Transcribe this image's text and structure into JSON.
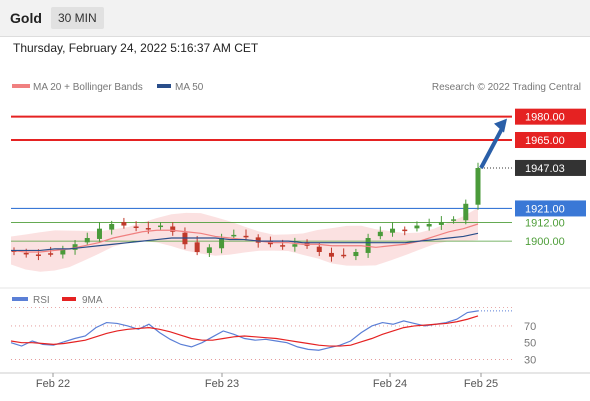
{
  "header": {
    "symbol": "Gold",
    "timeframe": "30 MIN"
  },
  "datetime": "Thursday, February 24, 2022 5:16:37 AM CET",
  "legend": {
    "items": [
      {
        "label": "MA 20 + Bollinger Bands",
        "color": "#f08080"
      },
      {
        "label": "MA 50",
        "color": "#2a4e8a"
      }
    ],
    "credit": "Research © 2022 Trading Central"
  },
  "colors": {
    "resistance": "#e52222",
    "pivot": "#3a78d6",
    "support": "#4f9e3a",
    "current": "#333333",
    "arrow": "#2a5fa8",
    "rsi": "#5b7fd6",
    "rsi_ma": "#e52222"
  },
  "chart_data": [
    {
      "type": "candlestick",
      "x_ticks": [
        "Feb 22",
        "Feb 23",
        "Feb 24",
        "Feb 25"
      ],
      "ylim": [
        1875,
        1992
      ],
      "series": [
        {
          "name": "MA 20 + Bollinger Bands",
          "values": [
            1894,
            1893,
            1893,
            1894,
            1895,
            1897,
            1899,
            1902,
            1904,
            1906,
            1907,
            1907,
            1906,
            1905,
            1903,
            1902,
            1901,
            1900,
            1899,
            1899,
            1898,
            1898,
            1897,
            1897,
            1897,
            1896,
            1897,
            1898,
            1900,
            1903,
            1906,
            1908,
            1911
          ]
        },
        {
          "name": "MA 50",
          "values": [
            1894,
            1894,
            1894,
            1895,
            1895,
            1896,
            1897,
            1898,
            1899,
            1900,
            1901,
            1902,
            1902,
            1902,
            1902,
            1901,
            1901,
            1900,
            1900,
            1900,
            1899,
            1899,
            1899,
            1899,
            1899,
            1899,
            1899,
            1899,
            1900,
            1901,
            1902,
            1903,
            1905
          ]
        }
      ],
      "close_series": [
        1893,
        1892,
        1891,
        1892,
        1895,
        1898,
        1902,
        1908,
        1911,
        1910,
        1909,
        1908,
        1910,
        1906,
        1898,
        1893,
        1896,
        1902,
        1904,
        1903,
        1899,
        1898,
        1897,
        1898,
        1897,
        1893,
        1890,
        1891,
        1893,
        1902,
        1906,
        1908,
        1907,
        1910,
        1911,
        1912,
        1914,
        1924,
        1947
      ],
      "levels": [
        {
          "value": 1980.0,
          "label": "1980.00",
          "kind": "resistance"
        },
        {
          "value": 1965.0,
          "label": "1965.00",
          "kind": "resistance"
        },
        {
          "value": 1947.03,
          "label": "1947.03",
          "kind": "current"
        },
        {
          "value": 1921.0,
          "label": "1921.00",
          "kind": "pivot"
        },
        {
          "value": 1912.0,
          "label": "1912.00",
          "kind": "support"
        },
        {
          "value": 1900.0,
          "label": "1900.00",
          "kind": "support"
        }
      ],
      "forecast_arrow": {
        "from": 1947,
        "to": 1980
      }
    },
    {
      "type": "line",
      "legend": [
        "RSI",
        "9MA"
      ],
      "y_ticks": [
        70,
        50,
        30
      ],
      "ylim": [
        15,
        95
      ],
      "series": [
        {
          "name": "RSI",
          "values": [
            50,
            46,
            52,
            48,
            47,
            51,
            55,
            58,
            68,
            74,
            73,
            70,
            66,
            72,
            62,
            54,
            48,
            45,
            50,
            57,
            64,
            60,
            55,
            53,
            54,
            52,
            50,
            45,
            42,
            41,
            44,
            47,
            52,
            62,
            70,
            74,
            72,
            76,
            73,
            70,
            72,
            74,
            78,
            86,
            88
          ]
        },
        {
          "name": "9MA",
          "values": [
            52,
            50,
            50,
            49,
            48,
            49,
            51,
            53,
            57,
            61,
            64,
            66,
            67,
            68,
            66,
            63,
            59,
            55,
            53,
            53,
            55,
            57,
            58,
            57,
            56,
            55,
            53,
            51,
            49,
            47,
            46,
            46,
            47,
            51,
            55,
            60,
            64,
            68,
            70,
            71,
            72,
            73,
            75,
            78,
            82
          ]
        }
      ]
    }
  ]
}
